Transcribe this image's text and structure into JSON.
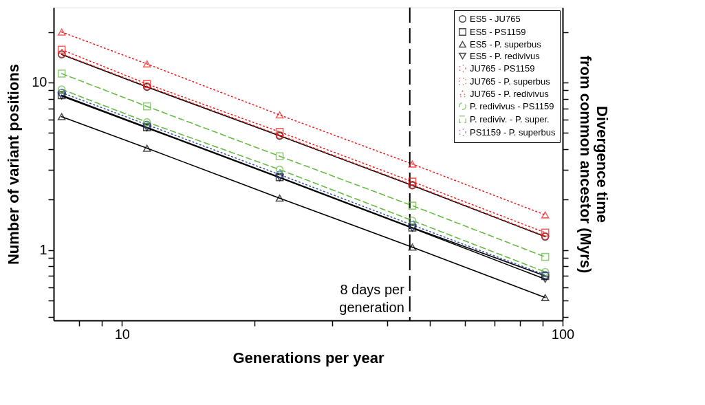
{
  "chart_data": {
    "type": "line",
    "xlabel": "Generations per year",
    "ylabel": "Number of variant positions",
    "y2label": "Divergence time\nfrom common ancestor (Myrs)",
    "x": [
      7.3,
      11.4,
      22.8,
      45.6,
      91.3
    ],
    "log": "xy",
    "xlim": [
      7,
      100
    ],
    "ylim": [
      0.38,
      28
    ],
    "xticks": [
      {
        "value": 8,
        "label": null
      },
      {
        "value": 9,
        "label": null
      },
      10,
      {
        "value": 20,
        "label": null
      },
      {
        "value": 30,
        "label": null
      },
      {
        "value": 40,
        "label": null
      },
      {
        "value": 50,
        "label": null
      },
      {
        "value": 60,
        "label": null
      },
      {
        "value": 70,
        "label": null
      },
      {
        "value": 80,
        "label": null
      },
      {
        "value": 90,
        "label": null
      },
      100
    ],
    "yticks": [
      {
        "value": 0.4,
        "label": null
      },
      {
        "value": 0.5,
        "label": null
      },
      {
        "value": 0.6,
        "label": null
      },
      {
        "value": 0.7,
        "label": null
      },
      {
        "value": 0.8,
        "label": null
      },
      {
        "value": 0.9,
        "label": null
      },
      1,
      {
        "value": 2,
        "label": null
      },
      {
        "value": 3,
        "label": null
      },
      {
        "value": 4,
        "label": null
      },
      {
        "value": 5,
        "label": null
      },
      {
        "value": 6,
        "label": null
      },
      {
        "value": 7,
        "label": null
      },
      {
        "value": 8,
        "label": null
      },
      {
        "value": 9,
        "label": null
      },
      10,
      {
        "value": 20,
        "label": null
      }
    ],
    "grid": false,
    "legend": "top right",
    "ref_lines": [
      {
        "axis": "x",
        "value": 45,
        "label": "8 days per\ngeneration",
        "line_style": "dashed",
        "color": "#000000"
      }
    ],
    "series": [
      {
        "name": "ES5 - JU765",
        "color": "#000000",
        "marker": "circle",
        "line_style": "solid",
        "values": [
          14.7,
          9.4,
          4.8,
          2.43,
          1.2
        ]
      },
      {
        "name": "ES5 - PS1159",
        "color": "#000000",
        "marker": "square",
        "line_style": "solid",
        "values": [
          8.4,
          5.4,
          2.72,
          1.36,
          0.7
        ]
      },
      {
        "name": "ES5 - P. superbus",
        "color": "#000000",
        "marker": "triangle",
        "line_style": "solid",
        "values": [
          6.25,
          4.05,
          2.04,
          1.04,
          0.52
        ]
      },
      {
        "name": "ES5 - P. redivivus",
        "color": "#000000",
        "marker": "triangle-down",
        "line_style": "solid",
        "values": [
          8.3,
          5.35,
          2.7,
          1.35,
          0.67
        ]
      },
      {
        "name": "JU765 - PS1159",
        "color": "#ee2222",
        "marker": "circle",
        "line_style": "dotted",
        "values": [
          14.8,
          9.5,
          4.85,
          2.45,
          1.21
        ]
      },
      {
        "name": "JU765 - P. superbus",
        "color": "#ee2222",
        "marker": "square",
        "line_style": "dotted",
        "values": [
          15.7,
          9.8,
          5.07,
          2.56,
          1.27
        ]
      },
      {
        "name": "JU765 - P. redivivus",
        "color": "#ee2222",
        "marker": "triangle",
        "line_style": "dotted",
        "values": [
          20.0,
          12.9,
          6.4,
          3.26,
          1.62
        ]
      },
      {
        "name": "P. redivivus - PS1159",
        "color": "#66bb44",
        "marker": "circle",
        "line_style": "dashed",
        "values": [
          9.1,
          5.8,
          3.02,
          1.5,
          0.74
        ]
      },
      {
        "name": "P. rediviv. - P. super.",
        "color": "#66bb44",
        "marker": "square",
        "line_style": "dashed",
        "values": [
          11.3,
          7.2,
          3.63,
          1.84,
          0.91
        ]
      },
      {
        "name": "PS1159 - P. superbus",
        "color": "#3355aa",
        "marker": "circle",
        "line_style": "dotted",
        "values": [
          8.7,
          5.6,
          2.82,
          1.41,
          0.71
        ]
      }
    ]
  }
}
